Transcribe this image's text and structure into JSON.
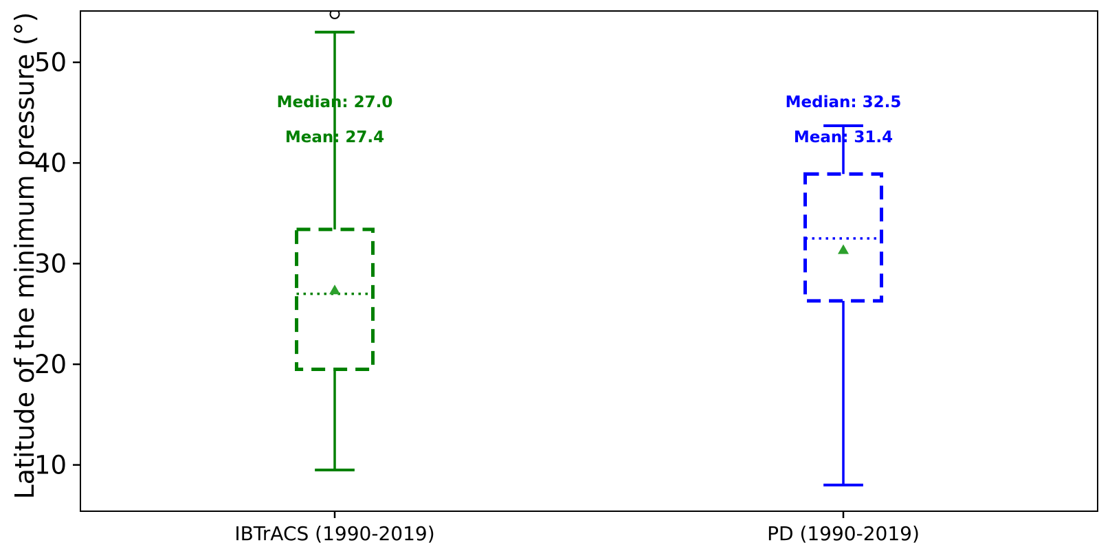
{
  "figure": {
    "background": "#ffffff",
    "plot_border_color": "#000000"
  },
  "chart_data": {
    "type": "boxplot",
    "title": "",
    "xlabel": "",
    "ylabel": "Latitude of the minimum pressure (°)",
    "ylim": [
      5.4,
      55.1
    ],
    "xlim": [
      0.5,
      2.5
    ],
    "yticks": [
      10,
      20,
      30,
      40,
      50
    ],
    "grid": false,
    "legend": false,
    "box_width": 0.15,
    "cap_width": 0.078,
    "box_line_style": "dashed",
    "median_line_style": "dotted",
    "mean_marker": "triangle-up",
    "mean_marker_color": "#2ca02c",
    "outlier_marker": "open-circle",
    "outlier_color": "#000000",
    "annotation_y_values": {
      "median": 46.1,
      "mean": 42.6
    },
    "series": [
      {
        "name": "IBTrACS (1990-2019)",
        "position": 1,
        "color": "#008000",
        "stats": {
          "whisker_low": 9.5,
          "q1": 19.5,
          "median": 27.0,
          "mean": 27.4,
          "q3": 33.4,
          "whisker_high": 53.0
        },
        "outliers": [
          54.8
        ],
        "annotations": {
          "median_label": "Median: 27.0",
          "mean_label": "Mean: 27.4"
        }
      },
      {
        "name": "PD (1990-2019)",
        "position": 2,
        "color": "#0000ff",
        "stats": {
          "whisker_low": 8.0,
          "q1": 26.3,
          "median": 32.5,
          "mean": 31.4,
          "q3": 38.9,
          "whisker_high": 43.7
        },
        "outliers": [],
        "annotations": {
          "median_label": "Median: 32.5",
          "mean_label": "Mean: 31.4"
        }
      }
    ]
  }
}
